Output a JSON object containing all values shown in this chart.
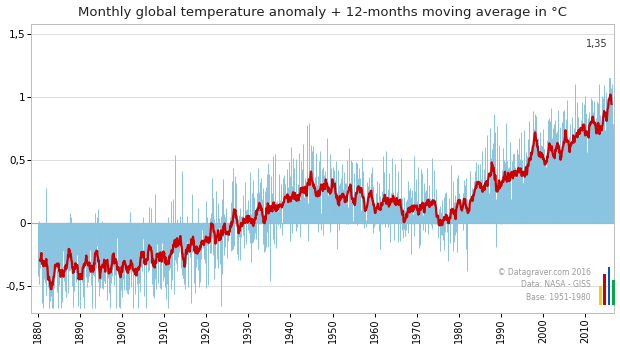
{
  "title": "Monthly global temperature anomaly + 12-months moving average in °C",
  "title_fontsize": 9.5,
  "bg_color": "#ffffff",
  "plot_bg_color": "#ffffff",
  "monthly_color": "#89C4E1",
  "moving_avg_color": "#cc0000",
  "moving_avg_lw": 1.6,
  "monthly_lw": 0.7,
  "ylim": [
    -0.72,
    1.58
  ],
  "yticks": [
    -0.5,
    0,
    0.5,
    1.0,
    1.5
  ],
  "yticklabels": [
    "-0,5",
    "0",
    "0,5",
    "1",
    "1,5"
  ],
  "annotation_text": "1,35",
  "watermark_line1": "© Datagraver.com 2016",
  "watermark_line2": "Data: NASA - GISS",
  "watermark_line3": "Base: 1951-1980",
  "grid_color": "#d0d0d0",
  "zero_line_color": "#aaaaaa",
  "decade_ticks": [
    1880,
    1890,
    1900,
    1910,
    1920,
    1930,
    1940,
    1950,
    1960,
    1970,
    1980,
    1990,
    2000,
    2010
  ],
  "start_year": 1880,
  "end_year": 2016,
  "xlim_left": 1878.5,
  "xlim_right": 2016.8
}
